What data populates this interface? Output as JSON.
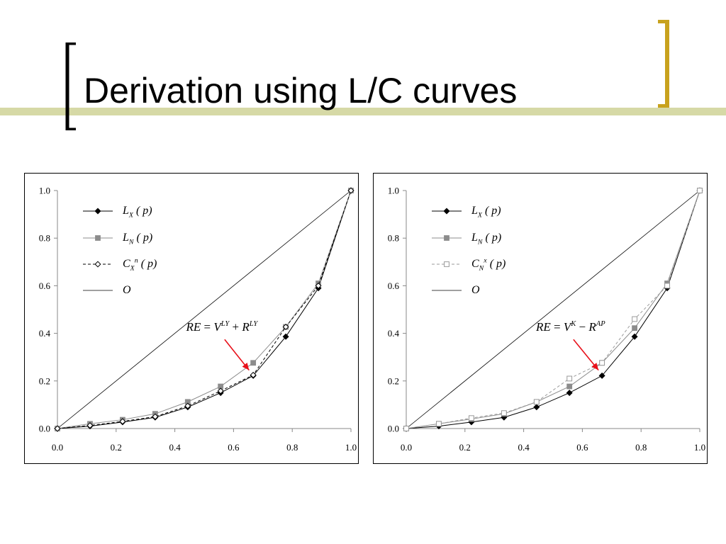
{
  "slide": {
    "title": "Derivation using L/C curves",
    "accent_color": "#c8a21e",
    "band_color": "#d6d9a6"
  },
  "chart_data": [
    {
      "type": "line",
      "xlim": [
        0,
        1
      ],
      "ylim": [
        0,
        1
      ],
      "x_ticks": [
        "0.0",
        "0.2",
        "0.4",
        "0.6",
        "0.8",
        "1.0"
      ],
      "y_ticks": [
        "0.0",
        "0.2",
        "0.4",
        "0.6",
        "0.8",
        "1.0"
      ],
      "grid": false,
      "legend_position": "top-left",
      "series": [
        {
          "name": "L_X(p)",
          "color": "#000000",
          "dash": "none",
          "marker": "diamond-filled",
          "x": [
            0,
            0.111,
            0.222,
            0.333,
            0.444,
            0.556,
            0.667,
            0.778,
            0.889,
            1.0
          ],
          "y": [
            0,
            0.01,
            0.027,
            0.047,
            0.09,
            0.15,
            0.222,
            0.386,
            0.59,
            1.0
          ]
        },
        {
          "name": "L_N(p)",
          "color": "#8c8c8c",
          "dash": "none",
          "marker": "square-filled",
          "x": [
            0,
            0.111,
            0.222,
            0.333,
            0.444,
            0.556,
            0.667,
            0.778,
            0.889,
            1.0
          ],
          "y": [
            0,
            0.02,
            0.037,
            0.062,
            0.112,
            0.177,
            0.276,
            0.427,
            0.61,
            1.0
          ]
        },
        {
          "name": "C_X^n(p)",
          "color": "#000000",
          "dash": "4,3",
          "marker": "diamond-open",
          "x": [
            0,
            0.111,
            0.222,
            0.333,
            0.444,
            0.556,
            0.667,
            0.778,
            0.889,
            1.0
          ],
          "y": [
            0,
            0.013,
            0.03,
            0.05,
            0.095,
            0.158,
            0.225,
            0.427,
            0.6,
            1.0
          ]
        },
        {
          "name": "O",
          "color": "#000000",
          "dash": "none",
          "marker": "none",
          "width": 0.8,
          "x": [
            0,
            1
          ],
          "y": [
            0,
            1
          ]
        }
      ],
      "legend": [
        {
          "parts": [
            [
              "L",
              ""
            ],
            [
              "X",
              "sub"
            ],
            [
              " ( p)",
              ""
            ]
          ]
        },
        {
          "parts": [
            [
              "L",
              ""
            ],
            [
              "N",
              "sub"
            ],
            [
              " ( p)",
              ""
            ]
          ]
        },
        {
          "parts": [
            [
              "C",
              ""
            ],
            [
              "X",
              "sub"
            ],
            [
              "n",
              "sup"
            ],
            [
              " ( p)",
              ""
            ]
          ]
        },
        {
          "parts": [
            [
              "O",
              ""
            ]
          ]
        }
      ],
      "annotation": {
        "parts": [
          [
            "RE",
            ""
          ],
          [
            " = ",
            "up"
          ],
          [
            "V",
            ""
          ],
          [
            "LY",
            "sup"
          ],
          [
            " + ",
            "up"
          ],
          [
            "R",
            ""
          ],
          [
            "LY",
            "sup"
          ]
        ],
        "arrow_color": "#e8101a",
        "points_to": [
          0.653,
          0.245
        ],
        "label_anchor": [
          0.56,
          0.41
        ]
      }
    },
    {
      "type": "line",
      "xlim": [
        0,
        1
      ],
      "ylim": [
        0,
        1
      ],
      "x_ticks": [
        "0.0",
        "0.2",
        "0.4",
        "0.6",
        "0.8",
        "1.0"
      ],
      "y_ticks": [
        "0.0",
        "0.2",
        "0.4",
        "0.6",
        "0.8",
        "1.0"
      ],
      "grid": false,
      "legend_position": "top-left",
      "series": [
        {
          "name": "L_X(p)",
          "color": "#000000",
          "dash": "none",
          "marker": "diamond-filled",
          "x": [
            0,
            0.111,
            0.222,
            0.333,
            0.444,
            0.556,
            0.667,
            0.778,
            0.889,
            1.0
          ],
          "y": [
            0,
            0.01,
            0.027,
            0.047,
            0.09,
            0.15,
            0.222,
            0.386,
            0.59,
            1.0
          ]
        },
        {
          "name": "L_N(p)",
          "color": "#8c8c8c",
          "dash": "none",
          "marker": "square-filled",
          "x": [
            0,
            0.111,
            0.222,
            0.333,
            0.444,
            0.556,
            0.667,
            0.778,
            0.889,
            1.0
          ],
          "y": [
            0,
            0.02,
            0.04,
            0.062,
            0.112,
            0.177,
            0.276,
            0.422,
            0.61,
            1.0
          ]
        },
        {
          "name": "C_N^x(p)",
          "color": "#9a9a9a",
          "dash": "4,3",
          "marker": "square-open",
          "x": [
            0,
            0.111,
            0.222,
            0.333,
            0.444,
            0.556,
            0.667,
            0.778,
            0.889,
            1.0
          ],
          "y": [
            0,
            0.02,
            0.044,
            0.065,
            0.112,
            0.21,
            0.276,
            0.46,
            0.6,
            1.0
          ]
        },
        {
          "name": "O",
          "color": "#000000",
          "dash": "none",
          "marker": "none",
          "width": 0.8,
          "x": [
            0,
            1
          ],
          "y": [
            0,
            1
          ]
        }
      ],
      "legend": [
        {
          "parts": [
            [
              "L",
              ""
            ],
            [
              "X",
              "sub"
            ],
            [
              " ( p)",
              ""
            ]
          ]
        },
        {
          "parts": [
            [
              "L",
              ""
            ],
            [
              "N",
              "sub"
            ],
            [
              " ( p)",
              ""
            ]
          ]
        },
        {
          "parts": [
            [
              "C",
              ""
            ],
            [
              "N",
              "sub"
            ],
            [
              "x",
              "sup"
            ],
            [
              " ( p)",
              ""
            ]
          ]
        },
        {
          "parts": [
            [
              "O",
              ""
            ]
          ]
        }
      ],
      "annotation": {
        "parts": [
          [
            "RE",
            ""
          ],
          [
            " = ",
            "up"
          ],
          [
            "V",
            ""
          ],
          [
            "K",
            "sup"
          ],
          [
            " − ",
            "up"
          ],
          [
            "R",
            ""
          ],
          [
            "AP",
            "sup"
          ]
        ],
        "arrow_color": "#e8101a",
        "points_to": [
          0.655,
          0.245
        ],
        "label_anchor": [
          0.56,
          0.41
        ]
      }
    }
  ]
}
